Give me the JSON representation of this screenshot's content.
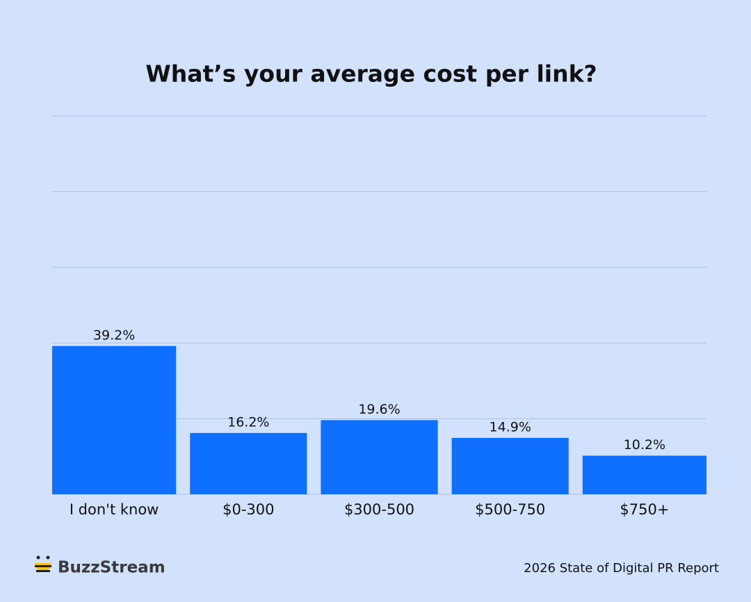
{
  "chart_data": {
    "type": "bar",
    "title": "What’s your average cost per link?",
    "categories": [
      "I don't know",
      "$0-300",
      "$300-500",
      "$500-750",
      "$750+"
    ],
    "values": [
      39.2,
      16.2,
      19.6,
      14.9,
      10.2
    ],
    "value_labels": [
      "39.2%",
      "16.2%",
      "19.6%",
      "14.9%",
      "10.2%"
    ],
    "color": "#0f6fff",
    "ylim": [
      0,
      100
    ],
    "yticks": [
      0,
      20,
      40,
      60,
      80,
      100
    ],
    "grid": true
  },
  "footer": {
    "brand": "BuzzStream",
    "source": "2026 State of Digital PR Report"
  }
}
